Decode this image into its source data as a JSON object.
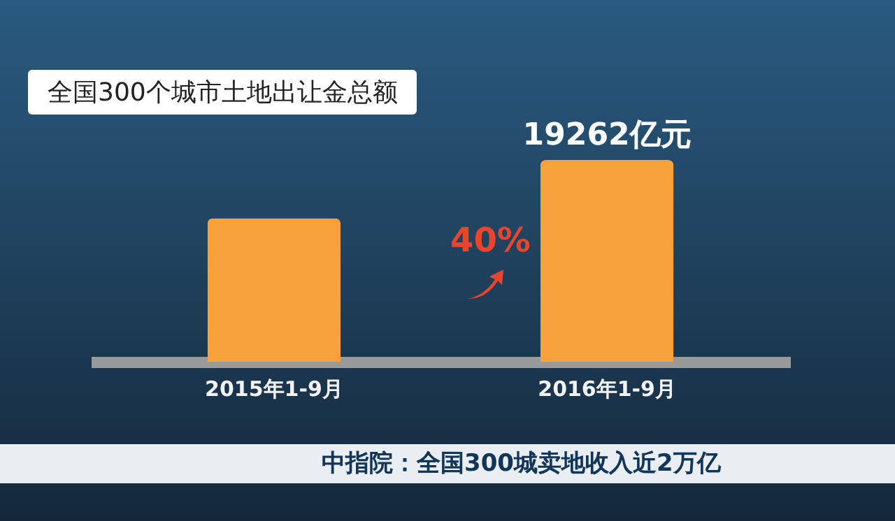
{
  "chart_data": {
    "type": "bar",
    "title": "全国300个城市土地出让金总额",
    "categories": [
      "2015年1-9月",
      "2016年1-9月"
    ],
    "values": [
      13700,
      19262
    ],
    "value_labels": [
      null,
      "19262亿元"
    ],
    "color": "#f7a13c",
    "grid": false,
    "annotations": [
      "40%",
      "中指院：全国300城卖地收入近2万亿"
    ]
  }
}
